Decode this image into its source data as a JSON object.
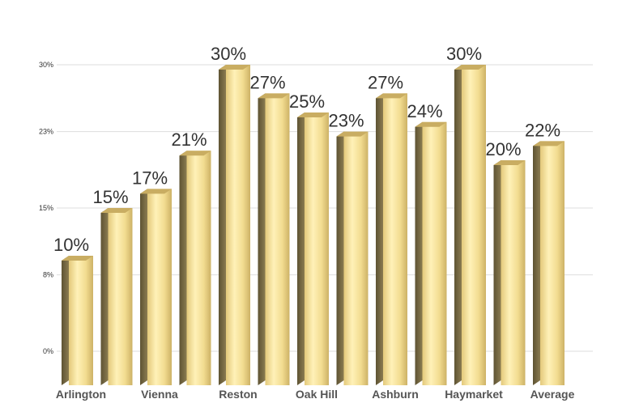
{
  "chart_data": {
    "type": "bar",
    "title": "",
    "xlabel": "",
    "ylabel": "",
    "ylim": [
      0,
      30
    ],
    "grid": true,
    "style": "3d-cylinder",
    "bar_color": "#f2dc90",
    "bar_shadow_color": "#6b5f3c",
    "categories": [
      "Arlington",
      "",
      "Vienna",
      "",
      "Reston",
      "",
      "Oak Hill",
      "",
      "Ashburn",
      "",
      "Haymarket",
      "",
      "Average"
    ],
    "values": [
      10,
      15,
      17,
      21,
      30,
      27,
      25,
      23,
      27,
      24,
      30,
      20,
      22
    ],
    "data_labels": [
      "10%",
      "15%",
      "17%",
      "21%",
      "30%",
      "27%",
      "25%",
      "23%",
      "27%",
      "24%",
      "30%",
      "20%",
      "22%"
    ],
    "yticks": [
      {
        "value": 0,
        "label": "0%"
      },
      {
        "value": 8,
        "label": "8%"
      },
      {
        "value": 15,
        "label": "15%"
      },
      {
        "value": 23,
        "label": "23%"
      },
      {
        "value": 30,
        "label": "30%"
      }
    ]
  }
}
